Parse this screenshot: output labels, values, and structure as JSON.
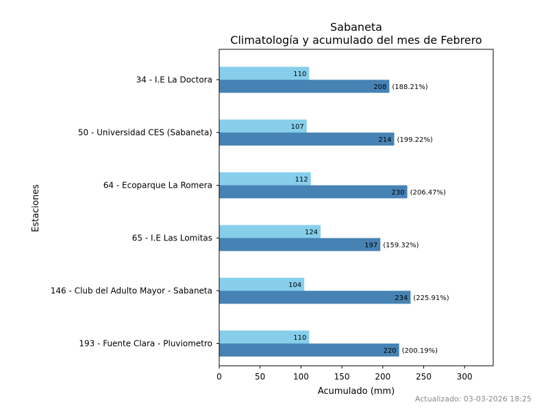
{
  "chart_data": {
    "type": "bar",
    "orientation": "horizontal",
    "title": "Sabaneta",
    "subtitle": "Climatología y acumulado del mes de Febrero",
    "xlabel": "Acumulado (mm)",
    "ylabel": "Estaciones",
    "xlim": [
      0,
      335
    ],
    "xticks": [
      0,
      50,
      100,
      150,
      200,
      250,
      300
    ],
    "grid": false,
    "categories": [
      "34 - I.E La Doctora",
      "50 - Universidad CES (Sabaneta)",
      "64 - Ecoparque La Romera",
      "65 - I.E Las Lomitas",
      "146 - Club del Adulto Mayor - Sabaneta",
      "193 - Fuente Clara - Pluviometro"
    ],
    "series": [
      {
        "values": [
          110,
          107,
          112,
          124,
          104,
          110
        ],
        "color": "#87CEEB"
      },
      {
        "values": [
          208,
          214,
          230,
          197,
          234,
          220
        ],
        "color": "#4682B4",
        "percent_labels": [
          "(188.21%)",
          "(199.22%)",
          "(206.47%)",
          "(159.32%)",
          "(225.91%)",
          "(200.19%)"
        ]
      }
    ]
  },
  "footer": {
    "updated": "Actualizado: 03-03-2026 18:25"
  }
}
